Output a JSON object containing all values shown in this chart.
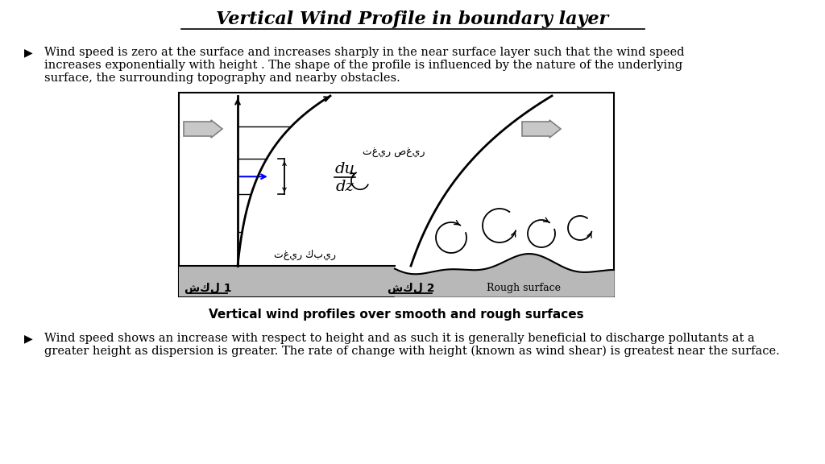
{
  "title": "Vertical Wind Profile in boundary layer",
  "bullet1_line1": "Wind speed is zero at the surface and increases sharply in the near surface layer such that the wind speed",
  "bullet1_line2": "increases exponentially with height . The shape of the profile is influenced by the nature of the underlying",
  "bullet1_line3": "surface, the surrounding topography and nearby obstacles.",
  "bullet2_line1": "Wind speed shows an increase with respect to height and as such it is generally beneficial to discharge pollutants at a",
  "bullet2_line2": "greater height as dispersion is greater. The rate of change with height (known as wind shear) is greatest near the surface.",
  "fig_caption": "Vertical wind profiles over smooth and rough surfaces",
  "arabic_small": "تغير صغير",
  "arabic_large": "تغير كبير",
  "arabic_fig1": "شكل 1",
  "arabic_fig2": "شكل 2",
  "rough_surface_label": "Rough surface",
  "bg_color": "#ffffff",
  "text_color": "#000000"
}
